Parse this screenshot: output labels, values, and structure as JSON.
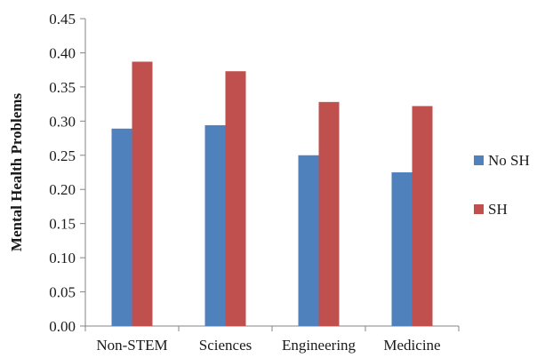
{
  "chart_data": {
    "type": "bar",
    "ylabel": "Mental Health Problems",
    "xlabel": "",
    "ylim": [
      0,
      0.45
    ],
    "y_ticks": [
      "0.00",
      "0.05",
      "0.10",
      "0.15",
      "0.20",
      "0.25",
      "0.30",
      "0.35",
      "0.40",
      "0.45"
    ],
    "categories": [
      "Non-STEM",
      "Sciences",
      "Engineering",
      "Medicine"
    ],
    "series": [
      {
        "name": "No SH",
        "color": "#4F81BD",
        "values": [
          0.289,
          0.294,
          0.25,
          0.225
        ]
      },
      {
        "name": "SH",
        "color": "#C0504D",
        "values": [
          0.387,
          0.373,
          0.328,
          0.322
        ]
      }
    ],
    "grid": false,
    "legend_position": "right"
  }
}
